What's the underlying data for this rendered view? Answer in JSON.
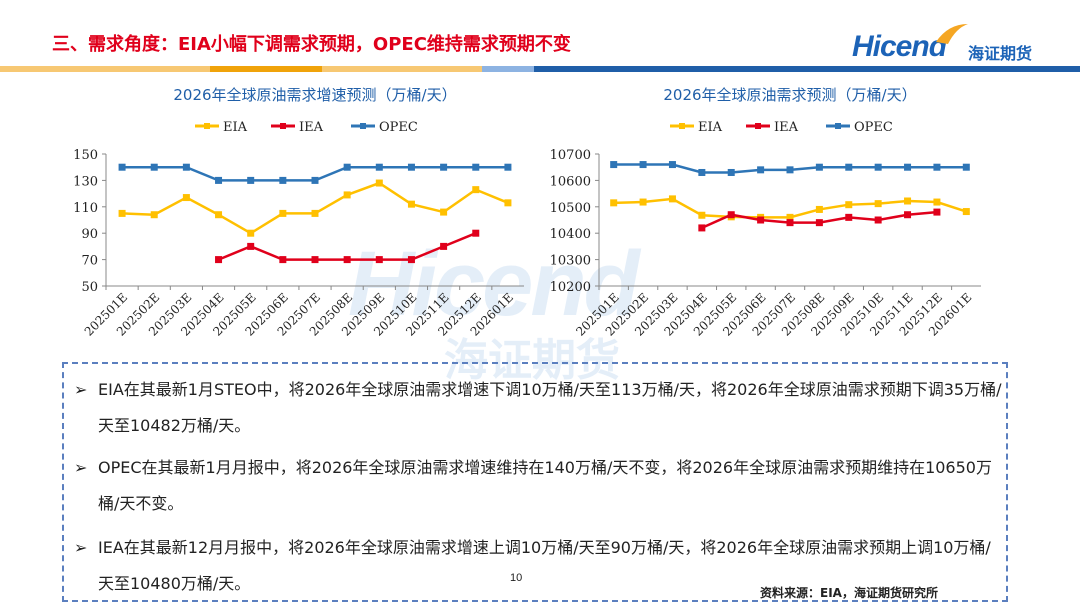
{
  "header": {
    "title": "三、需求角度：EIA小幅下调需求预期，OPEC维持需求预期不变",
    "logo_word": "Hicend",
    "logo_cn": "海证期货"
  },
  "colors": {
    "title_red": "#e0001b",
    "brand_blue": "#1c63b7",
    "eia": "#ffc000",
    "iea": "#e0001b",
    "opec": "#2e75b6"
  },
  "watermark": {
    "word": "Hicend",
    "cn": "海证期货"
  },
  "chart_data": [
    {
      "type": "line",
      "title": "2026年全球原油需求增速预测（万桶/天）",
      "categories": [
        "202501E",
        "202502E",
        "202503E",
        "202504E",
        "202505E",
        "202506E",
        "202507E",
        "202508E",
        "202509E",
        "202510E",
        "202511E",
        "202512E",
        "202601E"
      ],
      "ylim": [
        50,
        150
      ],
      "yticks": [
        50,
        70,
        90,
        110,
        130,
        150
      ],
      "legend_position": "top",
      "grid": false,
      "series": [
        {
          "name": "EIA",
          "values": [
            105,
            104,
            117,
            104,
            90,
            105,
            105,
            119,
            128,
            112,
            106,
            123,
            113
          ]
        },
        {
          "name": "IEA",
          "values": [
            null,
            null,
            null,
            70,
            80,
            70,
            70,
            70,
            70,
            70,
            80,
            90,
            null
          ]
        },
        {
          "name": "OPEC",
          "values": [
            140,
            140,
            140,
            130,
            130,
            130,
            130,
            140,
            140,
            140,
            140,
            140,
            140
          ]
        }
      ]
    },
    {
      "type": "line",
      "title": "2026年全球原油需求预测（万桶/天）",
      "categories": [
        "202501E",
        "202502E",
        "202503E",
        "202504E",
        "202505E",
        "202506E",
        "202507E",
        "202508E",
        "202509E",
        "202510E",
        "202511E",
        "202512E",
        "202601E"
      ],
      "ylim": [
        10200,
        10700
      ],
      "yticks": [
        10200,
        10300,
        10400,
        10500,
        10600,
        10700
      ],
      "legend_position": "top",
      "grid": false,
      "series": [
        {
          "name": "EIA",
          "values": [
            10515,
            10518,
            10530,
            10468,
            10462,
            10460,
            10460,
            10490,
            10508,
            10512,
            10522,
            10518,
            10482
          ]
        },
        {
          "name": "IEA",
          "values": [
            null,
            null,
            null,
            10420,
            10470,
            10450,
            10440,
            10440,
            10460,
            10450,
            10470,
            10480,
            null
          ]
        },
        {
          "name": "OPEC",
          "values": [
            10660,
            10660,
            10660,
            10630,
            10630,
            10640,
            10640,
            10650,
            10650,
            10650,
            10650,
            10650,
            10650
          ]
        }
      ]
    }
  ],
  "notes": {
    "arrow": "➢",
    "items": [
      "EIA在其最新1月STEO中，将2026年全球原油需求增速下调10万桶/天至113万桶/天，将2026年全球原油需求预期下调35万桶/天至10482万桶/天。",
      "OPEC在其最新1月月报中，将2026年全球原油需求增速维持在140万桶/天不变，将2026年全球原油需求预期维持在10650万桶/天不变。",
      "IEA在其最新12月月报中，将2026年全球原油需求增速上调10万桶/天至90万桶/天，将2026年全球原油需求预期上调10万桶/天至10480万桶/天。"
    ]
  },
  "footer": {
    "page_number": "10",
    "source": "资料来源：EIA，海证期货研究所"
  }
}
